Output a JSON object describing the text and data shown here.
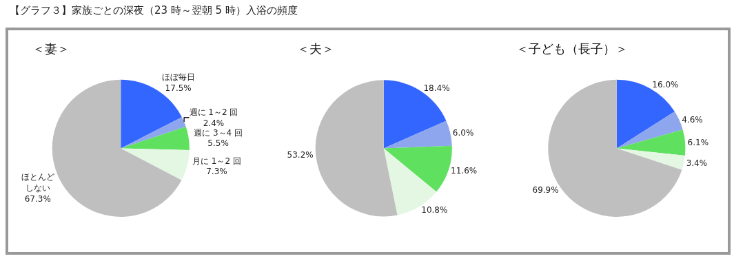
{
  "chart_data": [
    {
      "type": "pie",
      "title": "＜妻＞",
      "annotations": [
        "【グラフ３】家族ごとの深夜（23 時～翌朝 5 時）入浴の頻度"
      ],
      "legend": false,
      "categories": [
        "ほぼ毎日",
        "週に 1～2 回",
        "週に 3～4 回",
        "月に 1～2 回",
        "ほとんどしない"
      ],
      "values": [
        17.5,
        2.4,
        5.5,
        7.3,
        67.3
      ],
      "value_labels": [
        "17.5%",
        "2.4%",
        "5.5%",
        "7.3%",
        "67.3%"
      ],
      "colors": [
        "#3366ff",
        "#8ea6ee",
        "#5fe05f",
        "#e3f7e3",
        "#bfbfbf"
      ]
    },
    {
      "type": "pie",
      "title": "＜夫＞",
      "legend": false,
      "categories": [
        null,
        null,
        null,
        null,
        null
      ],
      "values": [
        18.4,
        6.0,
        11.6,
        10.8,
        53.2
      ],
      "value_labels": [
        "18.4%",
        "6.0%",
        "11.6%",
        "10.8%",
        "53.2%"
      ],
      "colors": [
        "#3366ff",
        "#8ea6ee",
        "#5fe05f",
        "#e3f7e3",
        "#bfbfbf"
      ]
    },
    {
      "type": "pie",
      "title": "＜子ども（長子）＞",
      "legend": false,
      "categories": [
        null,
        null,
        null,
        null,
        null
      ],
      "values": [
        16.0,
        4.6,
        6.1,
        3.4,
        69.9
      ],
      "value_labels": [
        "16.0%",
        "4.6%",
        "6.1%",
        "3.4%",
        "69.9%"
      ],
      "colors": [
        "#3366ff",
        "#8ea6ee",
        "#5fe05f",
        "#e3f7e3",
        "#bfbfbf"
      ]
    }
  ]
}
